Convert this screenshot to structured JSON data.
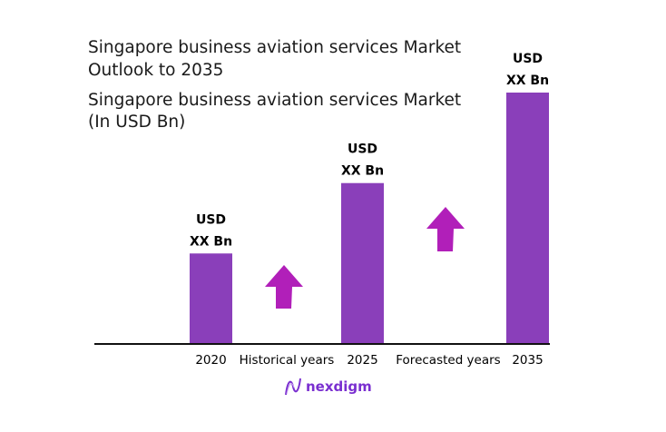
{
  "title": {
    "line1": "Singapore business aviation services Market",
    "line2": "Outlook to 2035",
    "line3": "Singapore business aviation services Market",
    "line4": "(In USD Bn)"
  },
  "chart_data": {
    "type": "bar",
    "categories": [
      "2020",
      "2025",
      "2035"
    ],
    "values": [
      0.36,
      0.64,
      1.0
    ],
    "data_labels": [
      [
        "USD",
        "XX Bn"
      ],
      [
        "USD",
        "XX Bn"
      ],
      [
        "USD",
        "XX Bn"
      ]
    ],
    "period_labels": [
      "Historical years",
      "Forecasted years"
    ],
    "ylim": [
      0,
      1
    ],
    "grid": false,
    "legend": "none",
    "colors": {
      "bar": "#8a3fba",
      "arrow": "#b11fb9",
      "axis": "#111111"
    }
  },
  "logo": {
    "text": "nexdigm",
    "color": "#7a2fd0"
  }
}
